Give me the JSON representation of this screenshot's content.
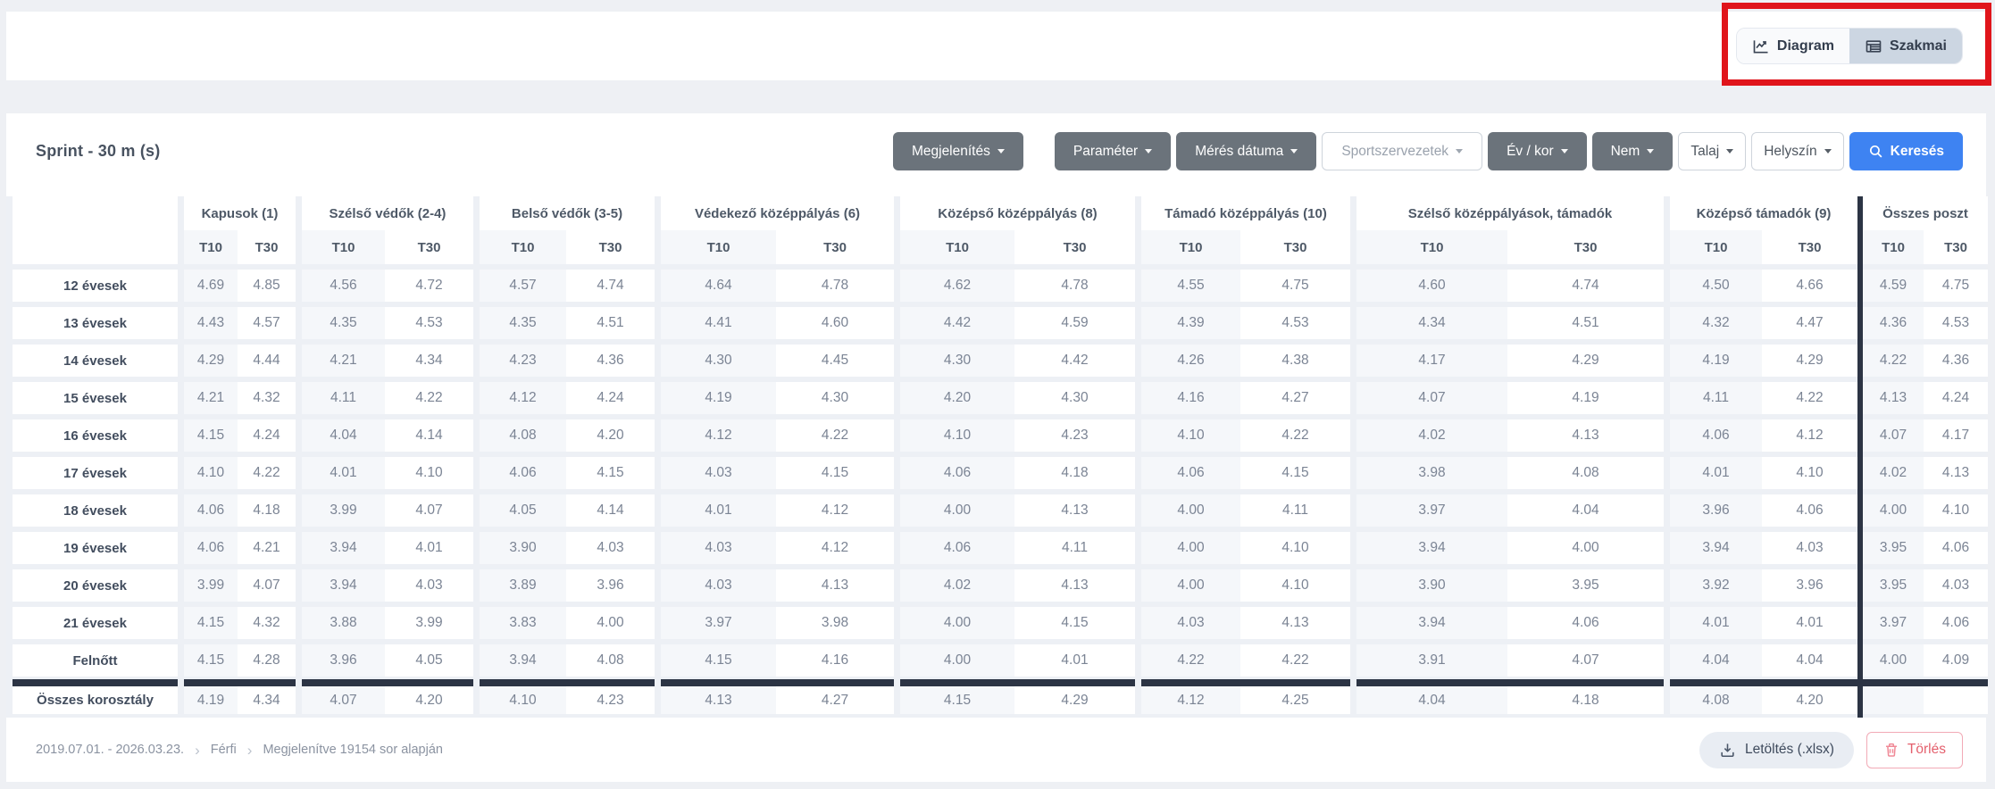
{
  "view_toggle": {
    "diagram_label": "Diagram",
    "szakmai_label": "Szakmai",
    "selected": "Szakmai"
  },
  "annotation_color": "#e0151b",
  "title": "Sprint - 30 m (s)",
  "toolbar": [
    {
      "label": "Megjelenítés",
      "variant": "dark",
      "caret": true,
      "gap_after": true
    },
    {
      "label": "Paraméter",
      "variant": "dark",
      "caret": true
    },
    {
      "label": "Mérés dátuma",
      "variant": "dark",
      "caret": true
    },
    {
      "label": "Sportszervezetek",
      "variant": "light-muted",
      "caret": true
    },
    {
      "label": "Év / kor",
      "variant": "dark",
      "caret": true
    },
    {
      "label": "Nem",
      "variant": "dark",
      "caret": true
    },
    {
      "label": "Talaj",
      "variant": "light",
      "caret": true
    },
    {
      "label": "Helyszín",
      "variant": "light",
      "caret": true
    },
    {
      "label": "Keresés",
      "variant": "primary",
      "icon": "search"
    }
  ],
  "table": {
    "groups": [
      "Kapusok (1)",
      "Szélső védők (2-4)",
      "Belső védők (3-5)",
      "Védekező középpályás (6)",
      "Középső középpályás (8)",
      "Támadó középpályás (10)",
      "Szélső középpályások, támadók",
      "Középső támadók (9)",
      "Összes poszt"
    ],
    "sub_headers": [
      "T10",
      "T30"
    ],
    "rows": [
      {
        "label": "12 évesek",
        "values": [
          "4.69",
          "4.85",
          "4.56",
          "4.72",
          "4.57",
          "4.74",
          "4.64",
          "4.78",
          "4.62",
          "4.78",
          "4.55",
          "4.75",
          "4.60",
          "4.74",
          "4.50",
          "4.66",
          "4.59",
          "4.75"
        ]
      },
      {
        "label": "13 évesek",
        "values": [
          "4.43",
          "4.57",
          "4.35",
          "4.53",
          "4.35",
          "4.51",
          "4.41",
          "4.60",
          "4.42",
          "4.59",
          "4.39",
          "4.53",
          "4.34",
          "4.51",
          "4.32",
          "4.47",
          "4.36",
          "4.53"
        ]
      },
      {
        "label": "14 évesek",
        "values": [
          "4.29",
          "4.44",
          "4.21",
          "4.34",
          "4.23",
          "4.36",
          "4.30",
          "4.45",
          "4.30",
          "4.42",
          "4.26",
          "4.38",
          "4.17",
          "4.29",
          "4.19",
          "4.29",
          "4.22",
          "4.36"
        ]
      },
      {
        "label": "15 évesek",
        "values": [
          "4.21",
          "4.32",
          "4.11",
          "4.22",
          "4.12",
          "4.24",
          "4.19",
          "4.30",
          "4.20",
          "4.30",
          "4.16",
          "4.27",
          "4.07",
          "4.19",
          "4.11",
          "4.22",
          "4.13",
          "4.24"
        ]
      },
      {
        "label": "16 évesek",
        "values": [
          "4.15",
          "4.24",
          "4.04",
          "4.14",
          "4.08",
          "4.20",
          "4.12",
          "4.22",
          "4.10",
          "4.23",
          "4.10",
          "4.22",
          "4.02",
          "4.13",
          "4.06",
          "4.12",
          "4.07",
          "4.17"
        ]
      },
      {
        "label": "17 évesek",
        "values": [
          "4.10",
          "4.22",
          "4.01",
          "4.10",
          "4.06",
          "4.15",
          "4.03",
          "4.15",
          "4.06",
          "4.18",
          "4.06",
          "4.15",
          "3.98",
          "4.08",
          "4.01",
          "4.10",
          "4.02",
          "4.13"
        ]
      },
      {
        "label": "18 évesek",
        "values": [
          "4.06",
          "4.18",
          "3.99",
          "4.07",
          "4.05",
          "4.14",
          "4.01",
          "4.12",
          "4.00",
          "4.13",
          "4.00",
          "4.11",
          "3.97",
          "4.04",
          "3.96",
          "4.06",
          "4.00",
          "4.10"
        ]
      },
      {
        "label": "19 évesek",
        "values": [
          "4.06",
          "4.21",
          "3.94",
          "4.01",
          "3.90",
          "4.03",
          "4.03",
          "4.12",
          "4.06",
          "4.11",
          "4.00",
          "4.10",
          "3.94",
          "4.00",
          "3.94",
          "4.03",
          "3.95",
          "4.06"
        ]
      },
      {
        "label": "20 évesek",
        "values": [
          "3.99",
          "4.07",
          "3.94",
          "4.03",
          "3.89",
          "3.96",
          "4.03",
          "4.13",
          "4.02",
          "4.13",
          "4.00",
          "4.10",
          "3.90",
          "3.95",
          "3.92",
          "3.96",
          "3.95",
          "4.03"
        ]
      },
      {
        "label": "21 évesek",
        "values": [
          "4.15",
          "4.32",
          "3.88",
          "3.99",
          "3.83",
          "4.00",
          "3.97",
          "3.98",
          "4.00",
          "4.15",
          "4.03",
          "4.13",
          "3.94",
          "4.06",
          "4.01",
          "4.01",
          "3.97",
          "4.06"
        ]
      },
      {
        "label": "Felnőtt",
        "values": [
          "4.15",
          "4.28",
          "3.96",
          "4.05",
          "3.94",
          "4.08",
          "4.15",
          "4.16",
          "4.00",
          "4.01",
          "4.22",
          "4.22",
          "3.91",
          "4.07",
          "4.04",
          "4.04",
          "4.00",
          "4.09"
        ]
      },
      {
        "label": "Összes korosztály",
        "total": true,
        "values": [
          "4.19",
          "4.34",
          "4.07",
          "4.20",
          "4.10",
          "4.23",
          "4.13",
          "4.27",
          "4.15",
          "4.29",
          "4.12",
          "4.25",
          "4.04",
          "4.18",
          "4.08",
          "4.20",
          "",
          ""
        ]
      }
    ]
  },
  "footer": {
    "date_range": "2019.07.01. - 2026.03.23.",
    "gender": "Férfi",
    "info": "Megjelenítve 19154 sor alapján",
    "download_label": "Letöltés (.xlsx)",
    "delete_label": "Törlés"
  }
}
